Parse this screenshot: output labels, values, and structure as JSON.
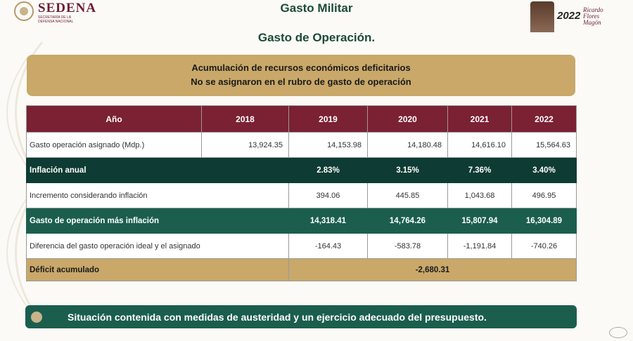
{
  "header": {
    "org_name": "SEDENA",
    "org_subtitle": "SECRETARÍA DE LA DEFENSA NACIONAL",
    "title": "Gasto Militar",
    "subtitle": "Gasto de Operación.",
    "badge_year": "2022",
    "badge_name": "Ricardo Flores Magón"
  },
  "banner": {
    "line1": "Acumulación de recursos económicos deficitarios",
    "line2": "No se asignaron en el rubro de gasto de operación"
  },
  "table": {
    "columns": [
      "Año",
      "2018",
      "2019",
      "2020",
      "2021",
      "2022"
    ],
    "assigned": {
      "label": "Gasto operación asignado (Mdp.)",
      "values": [
        "13,924.35",
        "14,153.98",
        "14,180.48",
        "14,616.10",
        "15,564.63"
      ]
    },
    "inflation": {
      "label": "Inflación anual",
      "values": [
        "2.83%",
        "3.15%",
        "7.36%",
        "3.40%"
      ]
    },
    "increment": {
      "label": "Incremento considerando inflación",
      "values": [
        "394.06",
        "445.85",
        "1,043.68",
        "496.95"
      ]
    },
    "with_inflation": {
      "label": "Gasto de operación más inflación",
      "values": [
        "14,318.41",
        "14,764.26",
        "15,807.94",
        "16,304.89"
      ]
    },
    "difference": {
      "label": "Diferencia del gasto operación ideal y el asignado",
      "values": [
        "-164.43",
        "-583.78",
        "-1,191.84",
        "-740.26"
      ]
    },
    "deficit": {
      "label": "Déficit acumulado",
      "value": "-2,680.31"
    }
  },
  "footer": {
    "text": "Situación contenida con medidas de austeridad y un ejercicio adecuado del presupuesto."
  }
}
